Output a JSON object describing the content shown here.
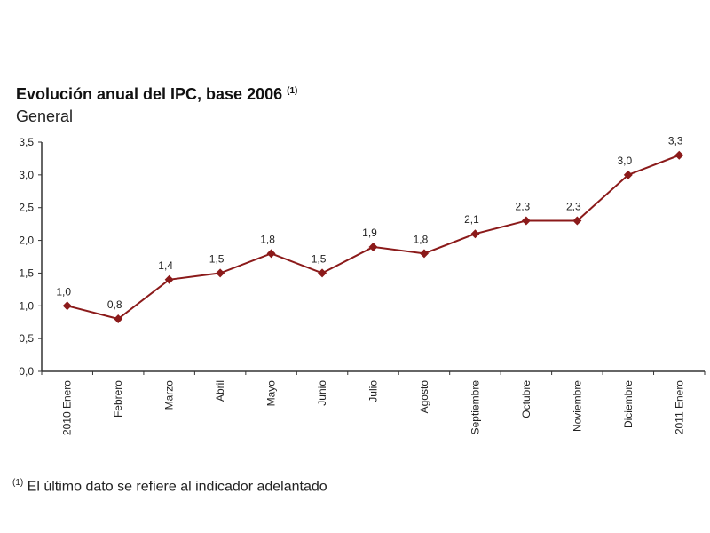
{
  "chart_data": {
    "type": "line",
    "title": "Evolución anual del IPC, base 2006",
    "title_note": "(1)",
    "subtitle": "General",
    "xlabel": "",
    "ylabel": "",
    "categories": [
      "2010 Enero",
      "Febrero",
      "Marzo",
      "Abril",
      "Mayo",
      "Junio",
      "Julio",
      "Agosto",
      "Septiembre",
      "Octubre",
      "Noviembre",
      "Diciembre",
      "2011 Enero"
    ],
    "series": [
      {
        "values": [
          1.0,
          0.8,
          1.4,
          1.5,
          1.8,
          1.5,
          1.9,
          1.8,
          2.1,
          2.3,
          2.3,
          3.0,
          3.3
        ],
        "labels": [
          "1,0",
          "0,8",
          "1,4",
          "1,5",
          "1,8",
          "1,5",
          "1,9",
          "1,8",
          "2,1",
          "2,3",
          "2,3",
          "3,0",
          "3,3"
        ]
      }
    ],
    "ylim": [
      0,
      3.5
    ],
    "yticks": [
      "0,0",
      "0,5",
      "1,0",
      "1,5",
      "2,0",
      "2,5",
      "3,0",
      "3,5"
    ],
    "grid": false,
    "line_color": "#8b1a1a",
    "marker": "diamond"
  },
  "footnote": {
    "mark": "(1)",
    "text": " El último dato se refiere al indicador adelantado"
  }
}
